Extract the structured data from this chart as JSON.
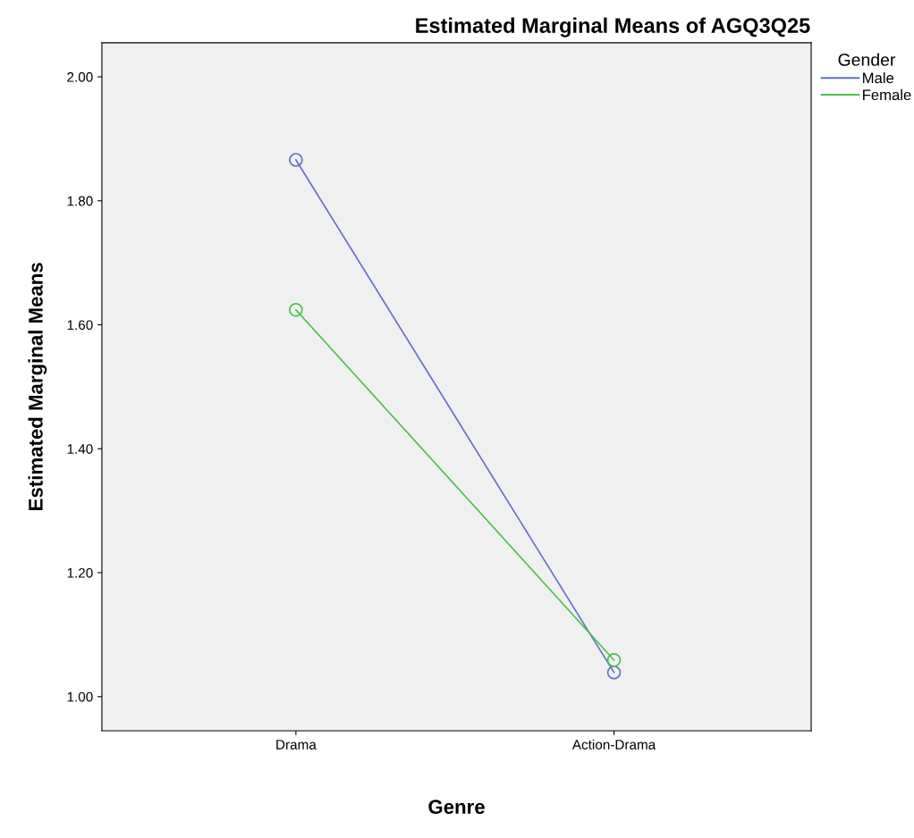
{
  "chart_data": {
    "type": "line",
    "title": "Estimated Marginal Means of AGQ3Q25",
    "xlabel": "Genre",
    "ylabel": "Estimated Marginal Means",
    "legend_title": "Gender",
    "categories": [
      "Drama",
      "Action-Drama"
    ],
    "series": [
      {
        "name": "Male",
        "color": "#6370c6",
        "values": [
          1.866,
          1.039
        ]
      },
      {
        "name": "Female",
        "color": "#4dc04d",
        "values": [
          1.624,
          1.059
        ]
      }
    ],
    "ylim": [
      0.945,
      2.055
    ],
    "yticks": [
      {
        "value": 1.0,
        "label": "1.00"
      },
      {
        "value": 1.2,
        "label": "1.20"
      },
      {
        "value": 1.4,
        "label": "1.40"
      },
      {
        "value": 1.6,
        "label": "1.60"
      },
      {
        "value": 1.8,
        "label": "1.80"
      },
      {
        "value": 2.0,
        "label": "2.00"
      }
    ],
    "marker": "circle",
    "grid": false,
    "legend": "top right"
  }
}
